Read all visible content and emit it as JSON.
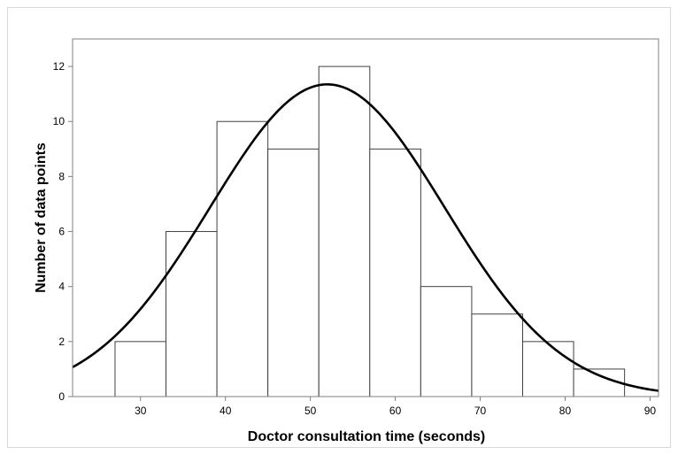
{
  "chart_data": {
    "type": "bar",
    "title": "",
    "xlabel": "Doctor consultation time (seconds)",
    "ylabel": "Number of data points",
    "xlim": [
      22,
      91
    ],
    "ylim": [
      0,
      13
    ],
    "xticks": [
      30,
      40,
      50,
      60,
      70,
      80,
      90
    ],
    "yticks": [
      0,
      2,
      4,
      6,
      8,
      10,
      12
    ],
    "grid": false,
    "bins": [
      {
        "start": 27,
        "end": 33,
        "count": 2
      },
      {
        "start": 33,
        "end": 39,
        "count": 6
      },
      {
        "start": 39,
        "end": 45,
        "count": 10
      },
      {
        "start": 45,
        "end": 51,
        "count": 9
      },
      {
        "start": 51,
        "end": 57,
        "count": 12
      },
      {
        "start": 57,
        "end": 63,
        "count": 9
      },
      {
        "start": 63,
        "end": 69,
        "count": 4
      },
      {
        "start": 69,
        "end": 75,
        "count": 3
      },
      {
        "start": 75,
        "end": 81,
        "count": 2
      },
      {
        "start": 81,
        "end": 87,
        "count": 1
      }
    ],
    "fit_curve": {
      "type": "normal",
      "mean": 52,
      "sd": 13.8,
      "peak": 11.35
    },
    "colors": {
      "bar_fill": "#ffffff",
      "bar_stroke": "#404040",
      "curve": "#000000",
      "axis": "#808080"
    }
  }
}
